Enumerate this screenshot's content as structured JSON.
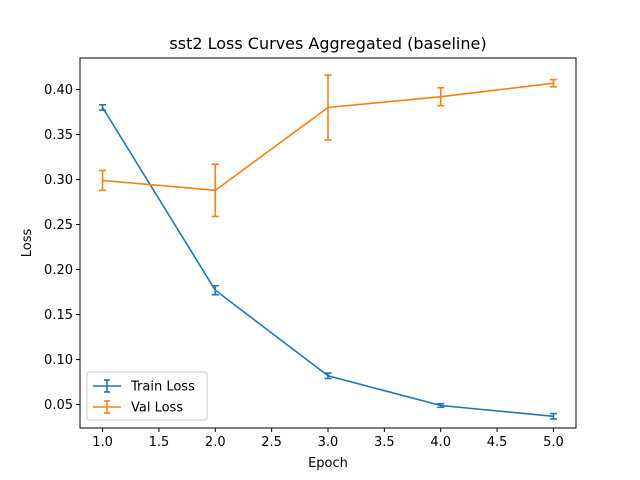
{
  "chart_data": {
    "type": "line",
    "title": "sst2 Loss Curves Aggregated (baseline)",
    "xlabel": "Epoch",
    "ylabel": "Loss",
    "xlim": [
      0.8,
      5.2
    ],
    "ylim": [
      0.024,
      0.435
    ],
    "xticks": [
      1.0,
      1.5,
      2.0,
      2.5,
      3.0,
      3.5,
      4.0,
      4.5,
      5.0
    ],
    "yticks": [
      0.05,
      0.1,
      0.15,
      0.2,
      0.25,
      0.3,
      0.35,
      0.4
    ],
    "xtick_labels": [
      "1.0",
      "1.5",
      "2.0",
      "2.5",
      "3.0",
      "3.5",
      "4.0",
      "4.5",
      "5.0"
    ],
    "ytick_labels": [
      "0.05",
      "0.10",
      "0.15",
      "0.20",
      "0.25",
      "0.30",
      "0.35",
      "0.40"
    ],
    "grid": false,
    "legend": "lower-left",
    "x": [
      1,
      2,
      3,
      4,
      5
    ],
    "series": [
      {
        "name": "Train Loss",
        "color": "#1f77b4",
        "values": [
          0.38,
          0.177,
          0.082,
          0.049,
          0.037
        ],
        "errors": [
          0.003,
          0.005,
          0.003,
          0.002,
          0.003
        ]
      },
      {
        "name": "Val Loss",
        "color": "#ff7f0e",
        "values": [
          0.299,
          0.288,
          0.38,
          0.392,
          0.407
        ],
        "errors": [
          0.011,
          0.029,
          0.036,
          0.01,
          0.004
        ]
      }
    ]
  }
}
